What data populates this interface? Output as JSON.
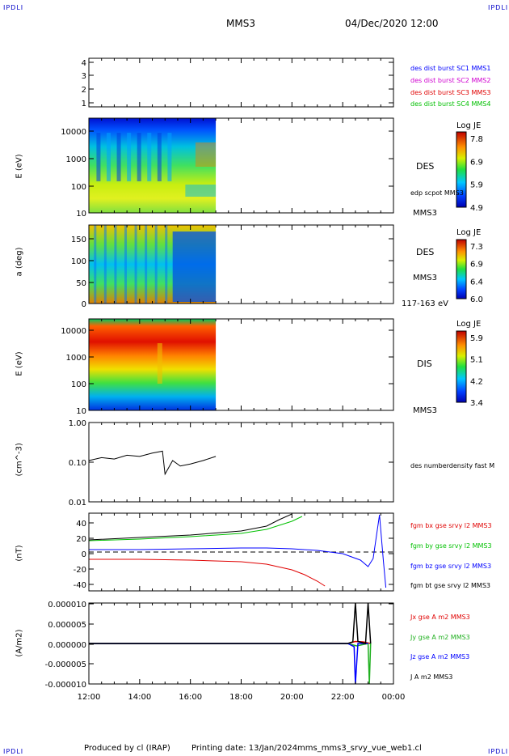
{
  "header": {
    "corner_tag": "IPDLI",
    "title": "MMS3",
    "datetime": "04/Dec/2020 12:00"
  },
  "footer": {
    "produced_by": "Produced by cl (IRAP)",
    "printing_date": "Printing date: 13/Jan/2024",
    "file": "mms_mms3_srvy_vue_web1.cl"
  },
  "colors": {
    "mms1": "#0000ff",
    "mms2": "#d000d0",
    "mms3": "#e00000",
    "mms4": "#00c000",
    "bx": "#e00000",
    "by": "#00c000",
    "bz": "#0000ff",
    "bt": "#000000"
  },
  "chart_data": [
    {
      "panel": "burst",
      "type": "table",
      "yticks": [
        "4",
        "3",
        "2",
        "1"
      ],
      "legend": [
        "des dist burst SC1 MMS1",
        "des dist burst SC2 MMS2",
        "des dist burst SC3 MMS3",
        "des dist burst SC4 MMS4"
      ]
    },
    {
      "panel": "des_energy",
      "type": "heatmap",
      "ylabel": "E (eV)",
      "yticks": [
        "10000",
        "1000",
        "100",
        "10"
      ],
      "ylim": [
        10,
        25000
      ],
      "yscale": "log",
      "side_labels": [
        "DES",
        "edp scpot MMS3",
        "MMS3"
      ],
      "colorbar": {
        "title": "Log JE",
        "ticks": [
          "7.8",
          "6.9",
          "5.9",
          "4.9"
        ]
      }
    },
    {
      "panel": "des_pitch",
      "type": "heatmap",
      "ylabel": "a (deg)",
      "yticks": [
        "150",
        "100",
        "50",
        "0"
      ],
      "ylim": [
        0,
        180
      ],
      "side_labels": [
        "DES",
        "MMS3",
        "117-163 eV"
      ],
      "colorbar": {
        "title": "Log JE",
        "ticks": [
          "7.3",
          "6.9",
          "6.4",
          "6.0"
        ]
      }
    },
    {
      "panel": "dis_energy",
      "type": "heatmap",
      "ylabel": "E (eV)",
      "yticks": [
        "10000",
        "1000",
        "100",
        "10"
      ],
      "ylim": [
        10,
        25000
      ],
      "yscale": "log",
      "side_labels": [
        "DIS",
        "MMS3"
      ],
      "colorbar": {
        "title": "Log JE",
        "ticks": [
          "5.9",
          "5.1",
          "4.2",
          "3.4"
        ]
      }
    },
    {
      "panel": "density",
      "type": "line",
      "ylabel": "(cm^-3)",
      "yticks": [
        "1.00",
        "0.10",
        "0.01"
      ],
      "ylim": [
        0.01,
        1.0
      ],
      "yscale": "log",
      "legend": [
        "des numberdensity fast M"
      ],
      "x": [
        12.0,
        12.5,
        13.0,
        13.5,
        14.0,
        14.5,
        14.9,
        15.0,
        15.3,
        15.6,
        16.0,
        16.5,
        17.0
      ],
      "y": [
        0.11,
        0.13,
        0.12,
        0.15,
        0.14,
        0.17,
        0.19,
        0.05,
        0.11,
        0.08,
        0.09,
        0.11,
        0.14
      ]
    },
    {
      "panel": "bfield",
      "type": "line",
      "ylabel": "(nT)",
      "yticks": [
        "40",
        "20",
        "0",
        "-20",
        "-40"
      ],
      "ylim": [
        -48,
        48
      ],
      "legend": [
        "fgm bx gse srvy l2 MMS3",
        "fgm by gse srvy l2 MMS3",
        "fgm bz gse srvy l2 MMS3",
        "fgm bt gse srvy l2 MMS3"
      ],
      "series": [
        {
          "name": "fgm bx gse srvy l2 MMS3",
          "x": [
            12,
            14,
            16,
            18,
            19,
            20,
            20.5,
            21,
            21.3
          ],
          "y": [
            -9,
            -9,
            -10,
            -12,
            -15,
            -22,
            -28,
            -36,
            -42
          ]
        },
        {
          "name": "fgm by gse srvy l2 MMS3",
          "x": [
            12,
            14,
            16,
            18,
            19,
            20,
            20.4
          ],
          "y": [
            14,
            16,
            19,
            23,
            28,
            38,
            44
          ]
        },
        {
          "name": "fgm bz gse srvy l2 MMS3",
          "x": [
            12,
            14,
            16,
            18,
            19,
            20,
            21,
            22,
            22.7,
            23.0,
            23.2,
            23.45,
            23.6,
            23.7
          ],
          "y": [
            3,
            3,
            4,
            5,
            5,
            4,
            2,
            -2,
            -10,
            -18,
            -8,
            46,
            -10,
            -44
          ]
        },
        {
          "name": "fgm bt gse srvy l2 MMS3",
          "x": [
            12,
            14,
            16,
            18,
            19,
            19.5,
            20.0
          ],
          "y": [
            15,
            18,
            21,
            26,
            32,
            40,
            47
          ]
        }
      ]
    },
    {
      "panel": "current",
      "type": "line",
      "ylabel": "(A/m2)",
      "yticks": [
        "0.000010",
        "0.000005",
        "0.000000",
        "-0.000005",
        "-0.000010"
      ],
      "ylim": [
        -1e-05,
        1e-05
      ],
      "legend": [
        "Jx gse A m2 MMS3",
        "Jy gse A m2 MMS3",
        "Jz gse A m2 MMS3",
        "J A m2 MMS3"
      ],
      "series": [
        {
          "name": "Jx gse A m2 MMS3",
          "x": [
            12,
            22.2,
            22.5,
            22.8,
            23.1
          ],
          "y": [
            0,
            0,
            5e-07,
            4e-07,
            0
          ]
        },
        {
          "name": "Jy gse A m2 MMS3",
          "x": [
            12,
            22.2,
            22.55,
            23.0,
            23.05,
            23.1
          ],
          "y": [
            0,
            0,
            -6e-07,
            0,
            -1e-05,
            0
          ]
        },
        {
          "name": "Jz gse A m2 MMS3",
          "x": [
            12,
            22.2,
            22.45,
            22.5,
            22.6,
            23.0
          ],
          "y": [
            0,
            0,
            -8e-07,
            -1e-05,
            0,
            0
          ]
        },
        {
          "name": "J A m2 MMS3",
          "x": [
            12,
            22.2,
            22.4,
            22.5,
            22.6,
            22.9,
            23.0,
            23.1
          ],
          "y": [
            0,
            0,
            4e-07,
            1e-05,
            5e-07,
            0,
            1e-05,
            0
          ]
        }
      ]
    }
  ],
  "xaxis": {
    "ticks": [
      "12:00",
      "14:00",
      "16:00",
      "18:00",
      "20:00",
      "22:00",
      "00:00"
    ],
    "xlim": [
      12,
      24
    ]
  }
}
